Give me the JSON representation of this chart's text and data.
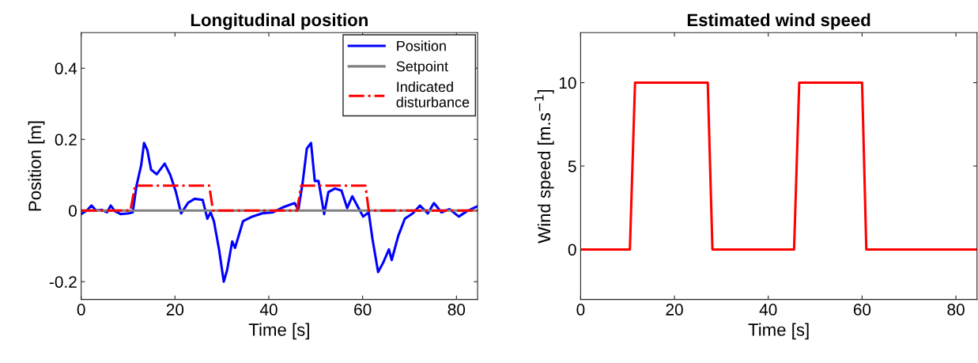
{
  "chart_data": [
    {
      "type": "line",
      "title": "Longitudinal position",
      "xlabel": "Time [s]",
      "ylabel": "Position [m]",
      "xlim": [
        0,
        84.5
      ],
      "ylim": [
        -0.25,
        0.5
      ],
      "xticks": [
        0,
        20,
        40,
        60,
        80
      ],
      "yticks": [
        {
          "value": -0.2,
          "label": "-0.2"
        },
        0,
        0.2,
        0.4
      ],
      "grid": false,
      "legend": "top right",
      "series": [
        {
          "name": "Position",
          "color": "#0000ff",
          "line_style": "solid",
          "x": [
            0,
            1.2,
            2.2,
            3.2,
            4.4,
            5.5,
            6.3,
            7.2,
            8.4,
            10.1,
            11.0,
            11.8,
            12.8,
            13.4,
            14.1,
            14.9,
            16.1,
            17.8,
            19.0,
            20.2,
            21.3,
            22.8,
            24.2,
            25.9,
            26.9,
            27.6,
            28.3,
            29.4,
            30.4,
            31.1,
            32.2,
            32.8,
            34.5,
            36.3,
            38.6,
            40.9,
            43.2,
            45.5,
            46.3,
            47.2,
            48.1,
            49.0,
            49.8,
            50.6,
            51.8,
            52.7,
            54.1,
            55.5,
            56.7,
            57.8,
            59.0,
            60.1,
            61.3,
            62.1,
            63.3,
            64.4,
            65.6,
            66.2,
            67.6,
            69.0,
            70.7,
            72.2,
            73.9,
            75.2,
            76.8,
            78.5,
            80.5,
            82.2,
            84.3
          ],
          "values": [
            -0.01,
            0.0,
            0.014,
            0.0,
            0.002,
            -0.005,
            0.014,
            -0.002,
            -0.01,
            -0.008,
            -0.005,
            0.07,
            0.128,
            0.19,
            0.17,
            0.115,
            0.102,
            0.132,
            0.1,
            0.052,
            -0.008,
            0.022,
            0.033,
            0.03,
            -0.023,
            -0.005,
            -0.03,
            -0.11,
            -0.2,
            -0.168,
            -0.087,
            -0.105,
            -0.03,
            -0.018,
            -0.008,
            -0.005,
            0.01,
            0.021,
            0.002,
            0.077,
            0.174,
            0.19,
            0.083,
            0.083,
            -0.01,
            0.052,
            0.062,
            0.056,
            0.007,
            0.04,
            0.01,
            -0.017,
            -0.005,
            -0.08,
            -0.173,
            -0.146,
            -0.109,
            -0.139,
            -0.071,
            -0.023,
            -0.008,
            0.014,
            -0.008,
            0.021,
            -0.005,
            0.004,
            -0.017,
            -0.002,
            0.011
          ]
        },
        {
          "name": "Setpoint",
          "color": "#808080",
          "line_style": "solid",
          "x": [
            0,
            84.5
          ],
          "values": [
            0,
            0
          ]
        },
        {
          "name": "Indicated\ndisturbance",
          "color": "#ff0000",
          "line_style": "dashdot",
          "x": [
            0,
            10.5,
            11.5,
            27.3,
            28.1,
            46.0,
            46.9,
            60.6,
            61.3,
            84.5
          ],
          "values": [
            0,
            0,
            0.07,
            0.07,
            0,
            0,
            0.07,
            0.07,
            0,
            0
          ]
        }
      ]
    },
    {
      "type": "line",
      "title": "Estimated wind speed",
      "xlabel": "Time [s]",
      "ylabel": "Wind speed [m.s$^{−1}$]",
      "xlim": [
        0,
        84.5
      ],
      "ylim": [
        -3,
        13
      ],
      "xticks": [
        0,
        20,
        40,
        60,
        80
      ],
      "yticks": [
        0,
        5,
        10
      ],
      "grid": false,
      "legend": false,
      "series": [
        {
          "color": "#ff0000",
          "line_style": "solid",
          "x": [
            0,
            10.5,
            11.6,
            27.1,
            28.1,
            45.5,
            46.6,
            60.0,
            60.9,
            84.5
          ],
          "values": [
            0,
            0,
            10,
            10,
            0,
            0,
            10,
            10,
            0,
            0
          ]
        }
      ]
    }
  ]
}
